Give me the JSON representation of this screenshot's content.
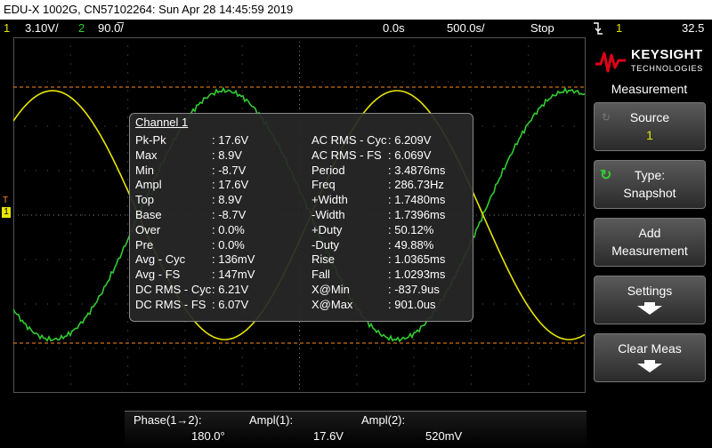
{
  "titlebar": {
    "text": "EDU-X 1002G, CN57102264: Sun Apr 28 14:45:59 2019"
  },
  "status": {
    "ch1_num": "1",
    "ch1_scale": "3.10V/",
    "ch2_num": "2",
    "ch2_scale": "90.0̅/",
    "delay": "0.0s",
    "timebase": "500.0s/",
    "run_state": "Stop",
    "trig_icon": "trigger-falling-edge-icon",
    "trig_ch": "1",
    "trig_level": "32.5"
  },
  "colors": {
    "ch1": "#e6e600",
    "ch2": "#33cc33",
    "grid": "#555555",
    "cursor": "#ff8c1a"
  },
  "measurement_panel": {
    "header": "Channel 1",
    "left": [
      {
        "name": "Pk-Pk",
        "value": ": 17.6V"
      },
      {
        "name": "Max",
        "value": ": 8.9V"
      },
      {
        "name": "Min",
        "value": ": -8.7V"
      },
      {
        "name": "Ampl",
        "value": ": 17.6V"
      },
      {
        "name": "Top",
        "value": ": 8.9V"
      },
      {
        "name": "Base",
        "value": ": -8.7V"
      },
      {
        "name": "Over",
        "value": ": 0.0%"
      },
      {
        "name": "Pre",
        "value": ": 0.0%"
      },
      {
        "name": "Avg - Cyc",
        "value": ": 136mV"
      },
      {
        "name": "Avg - FS",
        "value": ": 147mV"
      },
      {
        "name": "DC RMS - Cyc",
        "value": ": 6.21V"
      },
      {
        "name": "DC RMS - FS",
        "value": ": 6.07V"
      }
    ],
    "right": [
      {
        "name": "AC RMS - Cyc",
        "value": ": 6.209V"
      },
      {
        "name": "AC RMS - FS",
        "value": ": 6.069V"
      },
      {
        "name": "Period",
        "value": ": 3.4876ms"
      },
      {
        "name": "Freq",
        "value": ": 286.73Hz"
      },
      {
        "name": "+Width",
        "value": ": 1.7480ms"
      },
      {
        "name": "-Width",
        "value": ": 1.7396ms"
      },
      {
        "name": "+Duty",
        "value": ": 50.12%"
      },
      {
        "name": "-Duty",
        "value": ": 49.88%"
      },
      {
        "name": "Rise",
        "value": ": 1.0365ms"
      },
      {
        "name": "Fall",
        "value": ": 1.0293ms"
      },
      {
        "name": "X@Min",
        "value": ": -837.9us"
      },
      {
        "name": "X@Max",
        "value": ": 901.0us"
      }
    ]
  },
  "sidebar": {
    "brand": "KEYSIGHT",
    "brand_sub": "TECHNOLOGIES",
    "menu_title": "Measurement",
    "source_label": "Source",
    "source_value": "1",
    "type_label": "Type:",
    "type_value": "Snapshot",
    "add_label_1": "Add",
    "add_label_2": "Measurement",
    "settings_label": "Settings",
    "clear_label": "Clear Meas"
  },
  "bottom": {
    "phase_label": "Phase(1→2):",
    "phase_value": "180.0°",
    "ampl1_label": "Ampl(1):",
    "ampl1_value": "17.6V",
    "ampl2_label": "Ampl(2):",
    "ampl2_value": "520mV"
  },
  "markers": {
    "trigger": "T",
    "ch1_ground": "1"
  }
}
